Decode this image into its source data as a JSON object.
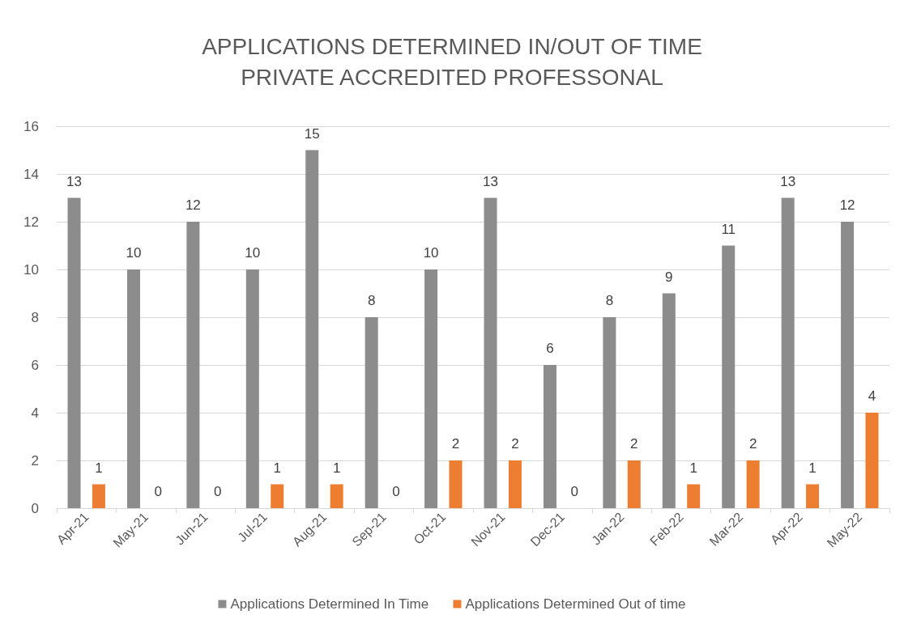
{
  "chart_data": {
    "type": "bar",
    "title": "APPLICATIONS DETERMINED IN/OUT OF TIME",
    "subtitle": "PRIVATE ACCREDITED PROFESSONAL",
    "categories": [
      "Apr-21",
      "May-21",
      "Jun-21",
      "Jul-21",
      "Aug-21",
      "Sep-21",
      "Oct-21",
      "Nov-21",
      "Dec-21",
      "Jan-22",
      "Feb-22",
      "Mar-22",
      "Apr-22",
      "May-22"
    ],
    "series": [
      {
        "name": "Applications Determined In Time",
        "color": "#8c8c8c",
        "values": [
          13,
          10,
          12,
          10,
          15,
          8,
          10,
          13,
          6,
          8,
          9,
          11,
          13,
          12
        ]
      },
      {
        "name": "Applications Determined Out of time",
        "color": "#ed7d31",
        "values": [
          1,
          0,
          0,
          1,
          1,
          0,
          2,
          2,
          0,
          2,
          1,
          2,
          1,
          4
        ]
      }
    ],
    "ylim": [
      0,
      16
    ],
    "yticks": [
      0,
      2,
      4,
      6,
      8,
      10,
      12,
      14,
      16
    ],
    "grid": "y",
    "legend": "bottom",
    "data_labels": true
  }
}
